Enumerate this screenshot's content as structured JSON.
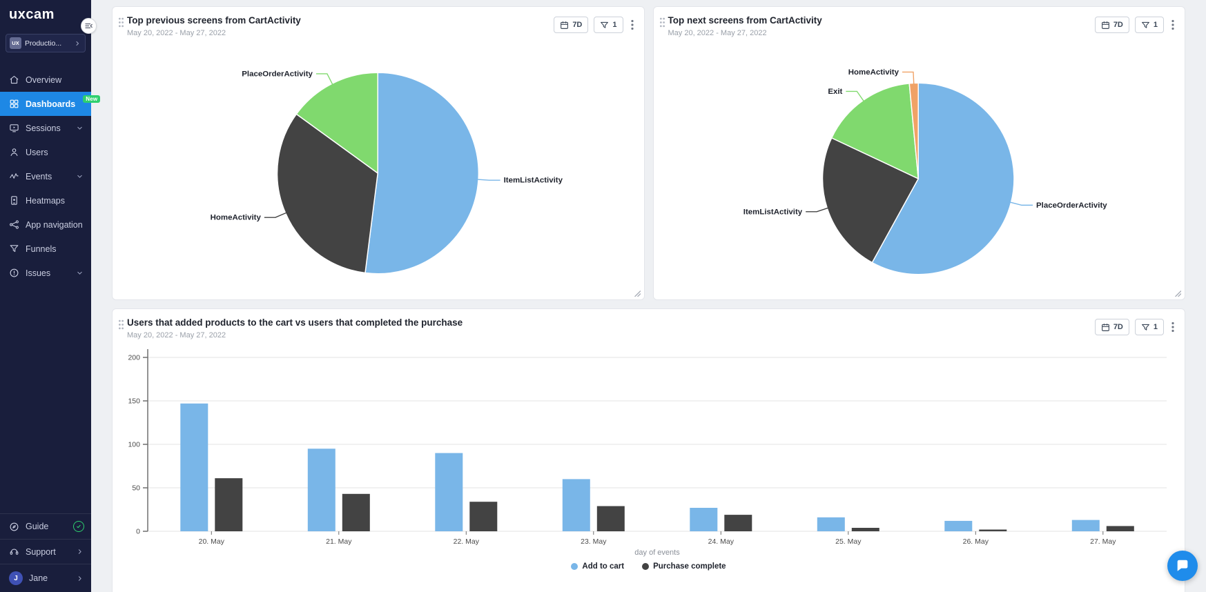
{
  "app": {
    "logo_text": "uxcam",
    "workspace": {
      "badge": "UX",
      "name": "Productio..."
    }
  },
  "colors": {
    "accent_blue": "#1e88e5",
    "badge_green": "#2ed06e",
    "pie_blue": "#79b6e8",
    "pie_dark": "#434343",
    "pie_green": "#80d96e",
    "pie_orange": "#f0a266",
    "intercom_blue": "#1f8ceb"
  },
  "sidebar": {
    "items": [
      {
        "label": "Overview",
        "icon": "home"
      },
      {
        "label": "Dashboards",
        "icon": "dashboards",
        "active": true,
        "badge": "New"
      },
      {
        "label": "Sessions",
        "icon": "sessions",
        "expandable": true
      },
      {
        "label": "Users",
        "icon": "users"
      },
      {
        "label": "Events",
        "icon": "events",
        "expandable": true
      },
      {
        "label": "Heatmaps",
        "icon": "heatmaps"
      },
      {
        "label": "App navigation",
        "icon": "app-navigation"
      },
      {
        "label": "Funnels",
        "icon": "funnels"
      },
      {
        "label": "Issues",
        "icon": "issues",
        "expandable": true
      }
    ],
    "footer": [
      {
        "label": "Guide",
        "icon": "guide",
        "trailing": "check"
      },
      {
        "label": "Support",
        "icon": "support",
        "trailing": "chevron"
      },
      {
        "label": "Jane",
        "avatar": "J",
        "trailing": "chevron"
      }
    ]
  },
  "cards": [
    {
      "title": "Top previous screens from CartActivity",
      "date_range": "May 20, 2022 - May 27, 2022",
      "range_label": "7D",
      "filter_count": "1"
    },
    {
      "title": "Top next screens from CartActivity",
      "date_range": "May 20, 2022 - May 27, 2022",
      "range_label": "7D",
      "filter_count": "1"
    },
    {
      "title": "Users that added products to the cart vs users that completed the purchase",
      "date_range": "May 20, 2022 - May 27, 2022",
      "range_label": "7D",
      "filter_count": "1"
    }
  ],
  "chart_data": [
    {
      "type": "pie",
      "title": "Top previous screens from CartActivity",
      "slices": [
        {
          "label": "ItemListActivity",
          "value": 52,
          "color": "#79b6e8"
        },
        {
          "label": "HomeActivity",
          "value": 33,
          "color": "#434343"
        },
        {
          "label": "PlaceOrderActivity",
          "value": 15,
          "color": "#80d96e"
        }
      ]
    },
    {
      "type": "pie",
      "title": "Top next screens from CartActivity",
      "slices": [
        {
          "label": "PlaceOrderActivity",
          "value": 58,
          "color": "#79b6e8"
        },
        {
          "label": "ItemListActivity",
          "value": 24,
          "color": "#434343"
        },
        {
          "label": "Exit",
          "value": 16.5,
          "color": "#80d96e"
        },
        {
          "label": "HomeActivity",
          "value": 1.5,
          "color": "#f0a266"
        }
      ]
    },
    {
      "type": "bar",
      "title": "Users that added products to the cart vs users that completed the purchase",
      "categories": [
        "20. May",
        "21. May",
        "22. May",
        "23. May",
        "24. May",
        "25. May",
        "26. May",
        "27. May"
      ],
      "series": [
        {
          "name": "Add to cart",
          "color": "#79b6e8",
          "values": [
            147,
            95,
            90,
            60,
            27,
            16,
            12,
            13
          ]
        },
        {
          "name": "Purchase complete",
          "color": "#434343",
          "values": [
            61,
            43,
            34,
            29,
            19,
            4,
            2,
            6
          ]
        }
      ],
      "xlabel": "day of events",
      "ylim": [
        0,
        200
      ],
      "yticks": [
        0,
        50,
        100,
        150,
        200
      ],
      "grid": true,
      "legend_position": "bottom"
    }
  ]
}
